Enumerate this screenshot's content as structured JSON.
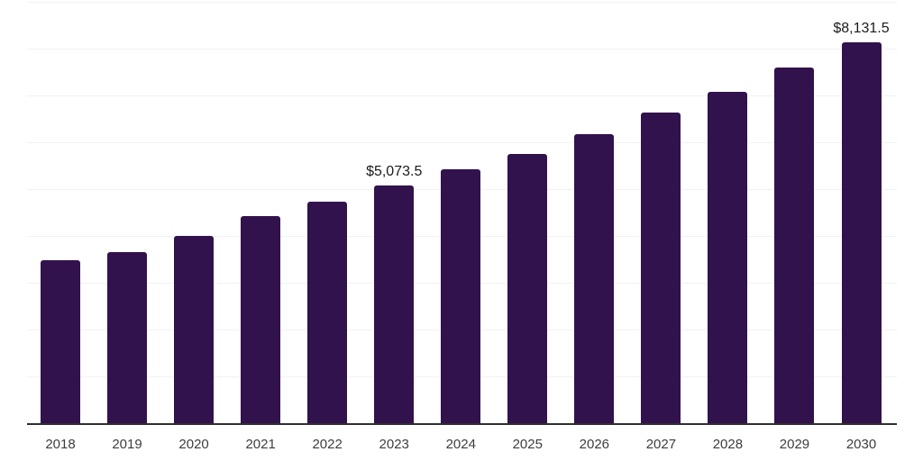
{
  "chart_data": {
    "type": "bar",
    "title": "",
    "xlabel": "",
    "ylabel": "",
    "categories": [
      "2018",
      "2019",
      "2020",
      "2021",
      "2022",
      "2023",
      "2024",
      "2025",
      "2026",
      "2027",
      "2028",
      "2029",
      "2030"
    ],
    "values": [
      3470,
      3645,
      3995,
      4420,
      4720,
      5073.5,
      5417,
      5745,
      6165,
      6630,
      7065,
      7590,
      8131.5
    ],
    "data_labels": [
      "",
      "",
      "",
      "",
      "",
      "$5,073.5",
      "",
      "",
      "",
      "",
      "",
      "",
      "$8,131.5"
    ],
    "ylim": [
      0,
      9030
    ],
    "grid_interval": 1000,
    "grid_visible": true,
    "legend": "none",
    "colors": {
      "bar": "#32124D",
      "axis_line": "#2E2E2E",
      "gridline": "#F2F2F2",
      "tick_label": "#3D3D3D",
      "data_label": "#1B1B1B",
      "background": "#FFFFFF"
    }
  }
}
